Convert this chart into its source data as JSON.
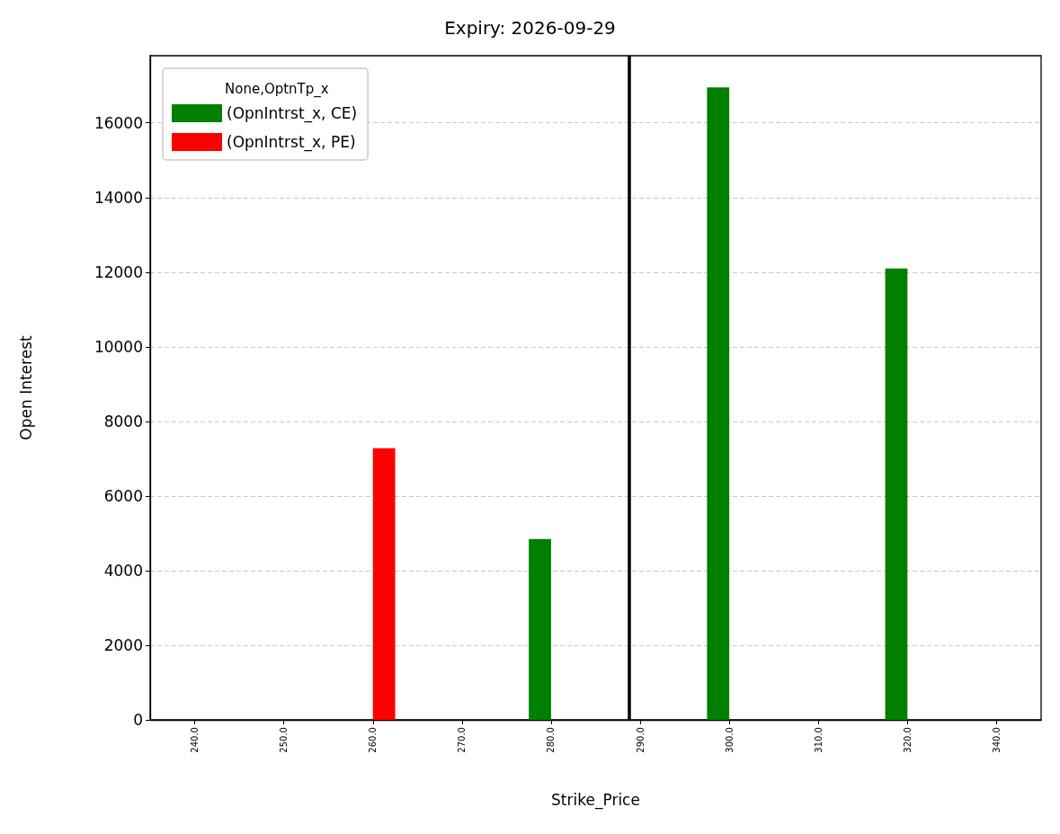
{
  "chart_data": {
    "type": "bar",
    "title": "Expiry: 2026-09-29",
    "xlabel": "Strike_Price",
    "ylabel": "Open Interest",
    "legend_title": "None,OptnTp_x",
    "categories": [
      "240.0",
      "250.0",
      "260.0",
      "270.0",
      "280.0",
      "290.0",
      "300.0",
      "310.0",
      "320.0",
      "340.0"
    ],
    "series": [
      {
        "name": "(OpnIntrst_x, CE)",
        "color": "#008000",
        "values": [
          null,
          null,
          null,
          null,
          4850,
          null,
          16950,
          null,
          12100,
          null
        ]
      },
      {
        "name": "(OpnIntrst_x, PE)",
        "color": "#ff0000",
        "values": [
          null,
          null,
          7280,
          null,
          null,
          null,
          null,
          null,
          null,
          null
        ]
      }
    ],
    "ylim": [
      0,
      17800
    ],
    "yticks": [
      0,
      2000,
      4000,
      6000,
      8000,
      10000,
      12000,
      14000,
      16000
    ],
    "ref_lines": [
      {
        "axis": "x",
        "value": "290.0",
        "color": "#000000",
        "line_style": "solid"
      }
    ],
    "grid": "y",
    "legend": "top left"
  }
}
